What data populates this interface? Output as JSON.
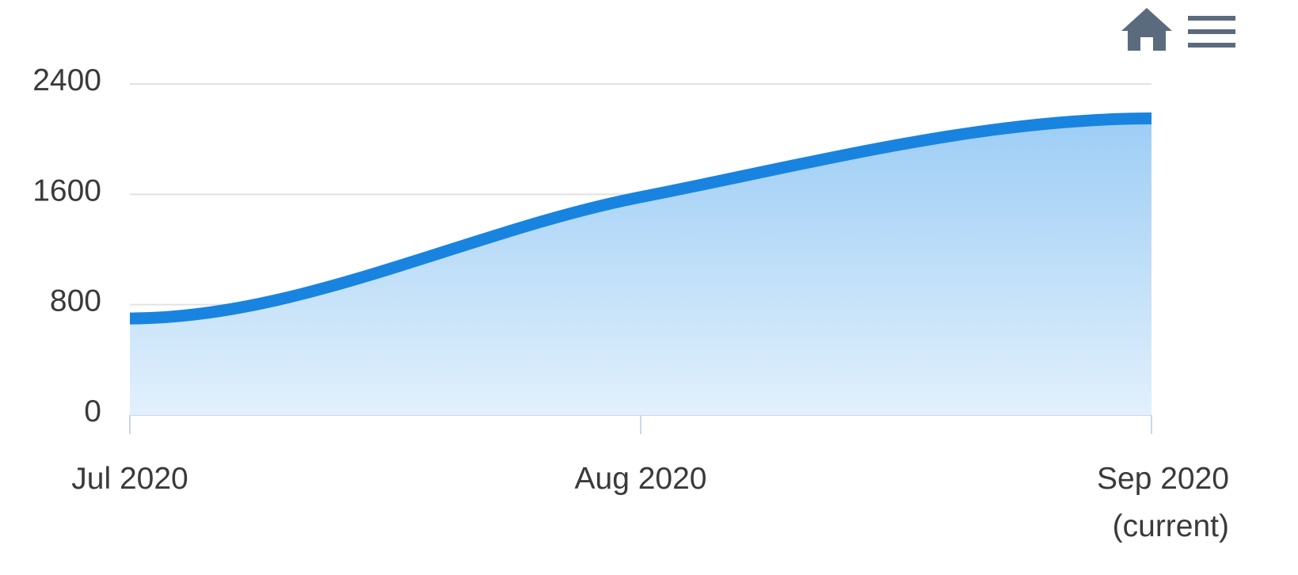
{
  "toolbar": {
    "home_icon": "home-icon",
    "menu_icon": "hamburger-menu-icon",
    "icon_color": "#5b6b7e"
  },
  "chart_data": {
    "type": "area",
    "title": "",
    "xlabel": "",
    "ylabel": "",
    "ylim": [
      0,
      2400
    ],
    "yticks": [
      0,
      800,
      1600,
      2400
    ],
    "categories": [
      "Jul 2020",
      "Aug 2020",
      "Sep 2020 (current)"
    ],
    "x_tick_labels": [
      [
        "Jul 2020"
      ],
      [
        "Aug 2020"
      ],
      [
        "Sep 2020",
        "(current)"
      ]
    ],
    "series": [
      {
        "values": [
          700,
          1580,
          2150
        ],
        "line_color": "#1884e0",
        "fill_top_color": "#9dcdf5",
        "fill_bottom_color": "#e2f0fc"
      }
    ],
    "grid": true,
    "legend": "none"
  }
}
